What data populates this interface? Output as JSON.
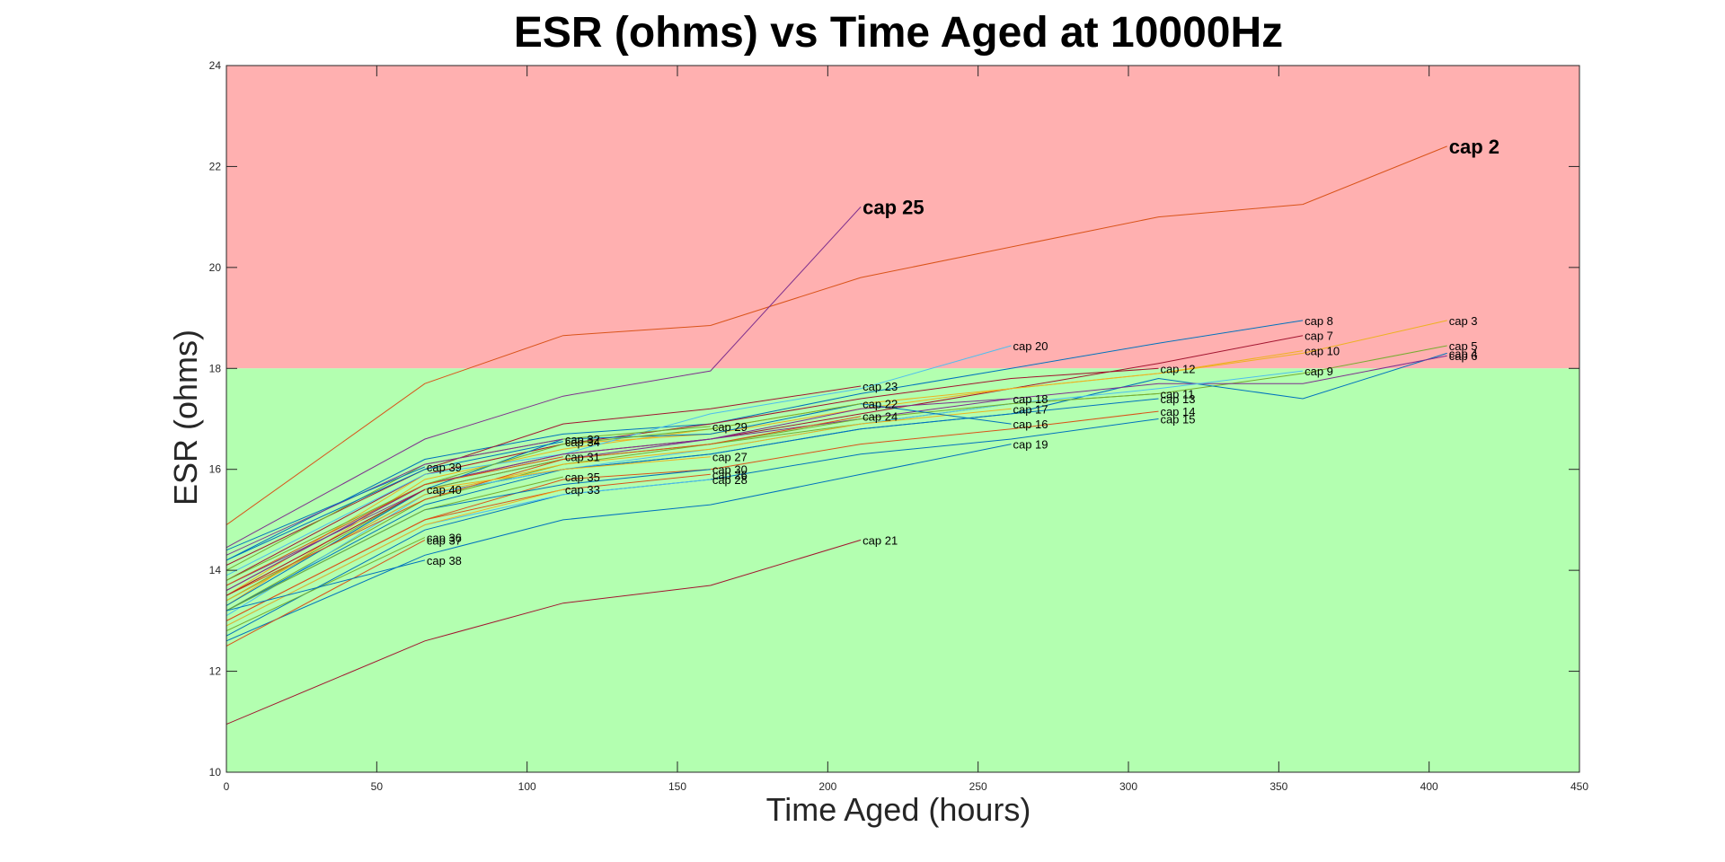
{
  "chart_data": {
    "type": "line",
    "title": "ESR (ohms) vs Time Aged at 10000Hz",
    "xlabel": "Time Aged (hours)",
    "ylabel": "ESR (ohms)",
    "xlim": [
      0,
      450
    ],
    "ylim": [
      10,
      24
    ],
    "xticks": [
      "0",
      "50",
      "100",
      "150",
      "200",
      "250",
      "300",
      "350",
      "400",
      "450"
    ],
    "yticks": [
      "10",
      "12",
      "14",
      "16",
      "18",
      "20",
      "22",
      "24"
    ],
    "grid": false,
    "regions": [
      {
        "y_from": 18,
        "y_to": 24,
        "color": "#ffb0b0"
      },
      {
        "y_from": 10,
        "y_to": 18,
        "color": "#b3ffb0"
      }
    ],
    "series": [
      {
        "name": "cap 2",
        "color": "#d95319",
        "bold": true,
        "x": [
          0,
          66,
          112,
          161,
          211,
          310,
          358,
          406
        ],
        "y": [
          14.9,
          17.7,
          18.65,
          18.85,
          19.8,
          21.0,
          21.25,
          22.4
        ]
      },
      {
        "name": "cap 25",
        "color": "#7e2f8e",
        "bold": true,
        "x": [
          0,
          66,
          112,
          161,
          211
        ],
        "y": [
          14.45,
          16.6,
          17.45,
          17.95,
          21.2
        ]
      },
      {
        "name": "cap 8",
        "color": "#0072bd",
        "x": [
          0,
          66,
          112,
          161,
          211,
          261,
          310,
          358
        ],
        "y": [
          14.2,
          16.2,
          16.7,
          16.9,
          17.5,
          18.0,
          18.5,
          18.95
        ]
      },
      {
        "name": "cap 7",
        "color": "#a2142f",
        "x": [
          0,
          66,
          112,
          161,
          211,
          261,
          310,
          358
        ],
        "y": [
          13.6,
          15.7,
          16.3,
          16.6,
          17.1,
          17.6,
          18.1,
          18.65
        ]
      },
      {
        "name": "cap 3",
        "color": "#edb120",
        "x": [
          0,
          66,
          112,
          161,
          211,
          261,
          310,
          358,
          406
        ],
        "y": [
          13.5,
          15.9,
          16.5,
          16.7,
          17.2,
          17.6,
          17.9,
          18.3,
          18.95
        ]
      },
      {
        "name": "cap 5",
        "color": "#77ac30",
        "x": [
          0,
          66,
          112,
          161,
          211,
          261,
          310,
          358,
          406
        ],
        "y": [
          13.2,
          15.4,
          16.1,
          16.5,
          16.9,
          17.3,
          17.5,
          17.9,
          18.45
        ]
      },
      {
        "name": "cap 4",
        "color": "#0072bd",
        "x": [
          0,
          66,
          112,
          161,
          211,
          261,
          310,
          358,
          406
        ],
        "y": [
          13.4,
          15.5,
          16.0,
          16.3,
          16.8,
          17.1,
          17.8,
          17.4,
          18.3
        ]
      },
      {
        "name": "cap 6",
        "color": "#7e2f8e",
        "x": [
          0,
          66,
          112,
          161,
          211,
          261,
          310,
          358,
          406
        ],
        "y": [
          13.7,
          15.6,
          16.2,
          16.6,
          17.0,
          17.4,
          17.7,
          17.7,
          18.25
        ]
      },
      {
        "name": "cap 10",
        "color": "#edb120",
        "x": [
          0,
          66,
          112,
          161,
          211,
          261,
          310,
          358
        ],
        "y": [
          13.3,
          15.8,
          16.4,
          16.8,
          17.3,
          17.6,
          17.9,
          18.35
        ]
      },
      {
        "name": "cap 9",
        "color": "#4dbeee",
        "x": [
          0,
          66,
          112,
          161,
          211,
          261,
          310,
          358
        ],
        "y": [
          13.1,
          15.5,
          16.0,
          16.4,
          16.9,
          17.3,
          17.6,
          17.95
        ]
      },
      {
        "name": "cap 12",
        "color": "#a2142f",
        "x": [
          0,
          66,
          112,
          161,
          211,
          261,
          310
        ],
        "y": [
          13.8,
          15.9,
          16.5,
          16.9,
          17.4,
          17.8,
          18.0
        ]
      },
      {
        "name": "cap 11",
        "color": "#77ac30",
        "x": [
          0,
          66,
          112,
          161,
          211,
          261,
          310
        ],
        "y": [
          13.4,
          15.6,
          16.2,
          16.5,
          17.0,
          17.3,
          17.5
        ]
      },
      {
        "name": "cap 13",
        "color": "#0072bd",
        "x": [
          0,
          66,
          112,
          161,
          211,
          261,
          310
        ],
        "y": [
          13.2,
          15.3,
          16.0,
          16.3,
          16.8,
          17.1,
          17.4
        ]
      },
      {
        "name": "cap 14",
        "color": "#d95319",
        "x": [
          0,
          66,
          112,
          161,
          211,
          261,
          310
        ],
        "y": [
          13.0,
          15.0,
          15.8,
          16.0,
          16.5,
          16.8,
          17.15
        ]
      },
      {
        "name": "cap 15",
        "color": "#0072bd",
        "x": [
          0,
          66,
          112,
          161,
          211,
          261,
          310
        ],
        "y": [
          12.7,
          14.8,
          15.5,
          15.8,
          16.3,
          16.6,
          17.0
        ]
      },
      {
        "name": "cap 20",
        "color": "#4dbeee",
        "x": [
          0,
          66,
          112,
          161,
          211,
          261
        ],
        "y": [
          13.9,
          15.9,
          16.3,
          17.1,
          17.6,
          18.45
        ]
      },
      {
        "name": "cap 18",
        "color": "#7e2f8e",
        "x": [
          0,
          66,
          112,
          161,
          211,
          261
        ],
        "y": [
          13.6,
          15.7,
          16.3,
          16.6,
          17.2,
          17.4
        ]
      },
      {
        "name": "cap 17",
        "color": "#edb120",
        "x": [
          0,
          66,
          112,
          161,
          211,
          261
        ],
        "y": [
          13.4,
          15.5,
          16.1,
          16.4,
          16.9,
          17.2
        ]
      },
      {
        "name": "cap 16",
        "color": "#0072bd",
        "x": [
          0,
          66,
          112,
          161,
          211,
          261
        ],
        "y": [
          13.3,
          15.6,
          16.6,
          16.7,
          17.3,
          16.9
        ]
      },
      {
        "name": "cap 19",
        "color": "#0072bd",
        "x": [
          0,
          66,
          112,
          161,
          211,
          261
        ],
        "y": [
          12.6,
          14.3,
          15.0,
          15.3,
          15.9,
          16.5
        ]
      },
      {
        "name": "cap 23",
        "color": "#a2142f",
        "x": [
          0,
          66,
          112,
          161,
          211
        ],
        "y": [
          14.1,
          16.0,
          16.9,
          17.2,
          17.65
        ]
      },
      {
        "name": "cap 22",
        "color": "#77ac30",
        "x": [
          0,
          66,
          112,
          161,
          211
        ],
        "y": [
          13.8,
          15.7,
          16.5,
          16.8,
          17.3
        ]
      },
      {
        "name": "cap 24",
        "color": "#d95319",
        "x": [
          0,
          66,
          112,
          161,
          211
        ],
        "y": [
          13.5,
          15.4,
          16.2,
          16.5,
          17.05
        ]
      },
      {
        "name": "cap 21",
        "color": "#a2142f",
        "x": [
          0,
          66,
          112,
          161,
          211
        ],
        "y": [
          10.95,
          12.6,
          13.35,
          13.7,
          14.6
        ]
      },
      {
        "name": "cap 29",
        "color": "#77ac30",
        "x": [
          0,
          66,
          112,
          161
        ],
        "y": [
          14.0,
          16.1,
          16.6,
          16.85
        ]
      },
      {
        "name": "cap 27",
        "color": "#edb120",
        "x": [
          0,
          66,
          112,
          161
        ],
        "y": [
          13.5,
          15.6,
          16.0,
          16.25
        ]
      },
      {
        "name": "cap 30",
        "color": "#0072bd",
        "x": [
          0,
          66,
          112,
          161
        ],
        "y": [
          13.2,
          15.2,
          15.7,
          16.0
        ]
      },
      {
        "name": "cap 26",
        "color": "#d95319",
        "x": [
          0,
          66,
          112,
          161
        ],
        "y": [
          13.0,
          15.0,
          15.6,
          15.9
        ]
      },
      {
        "name": "cap 28",
        "color": "#4dbeee",
        "x": [
          0,
          66,
          112,
          161
        ],
        "y": [
          12.9,
          14.9,
          15.5,
          15.8
        ]
      },
      {
        "name": "cap 32",
        "color": "#7e2f8e",
        "x": [
          0,
          66,
          112
        ],
        "y": [
          14.3,
          16.1,
          16.6
        ]
      },
      {
        "name": "cap 34",
        "color": "#0072bd",
        "x": [
          0,
          66,
          112
        ],
        "y": [
          14.2,
          16.0,
          16.55
        ]
      },
      {
        "name": "cap 31",
        "color": "#d95319",
        "x": [
          0,
          66,
          112
        ],
        "y": [
          13.7,
          15.7,
          16.25
        ]
      },
      {
        "name": "cap 35",
        "color": "#77ac30",
        "x": [
          0,
          66,
          112
        ],
        "y": [
          13.2,
          15.2,
          15.85
        ]
      },
      {
        "name": "cap 33",
        "color": "#edb120",
        "x": [
          0,
          66,
          112
        ],
        "y": [
          12.9,
          14.9,
          15.6
        ]
      },
      {
        "name": "cap 39",
        "color": "#0072bd",
        "x": [
          0,
          66
        ],
        "y": [
          14.4,
          16.05
        ]
      },
      {
        "name": "cap 40",
        "color": "#a2142f",
        "x": [
          0,
          66
        ],
        "y": [
          13.5,
          15.6
        ]
      },
      {
        "name": "cap 36",
        "color": "#77ac30",
        "x": [
          0,
          66
        ],
        "y": [
          12.8,
          14.65
        ]
      },
      {
        "name": "cap 37",
        "color": "#d95319",
        "x": [
          0,
          66
        ],
        "y": [
          12.5,
          14.6
        ]
      },
      {
        "name": "cap 38",
        "color": "#0072bd",
        "x": [
          0,
          66
        ],
        "y": [
          13.2,
          14.2
        ]
      }
    ]
  }
}
